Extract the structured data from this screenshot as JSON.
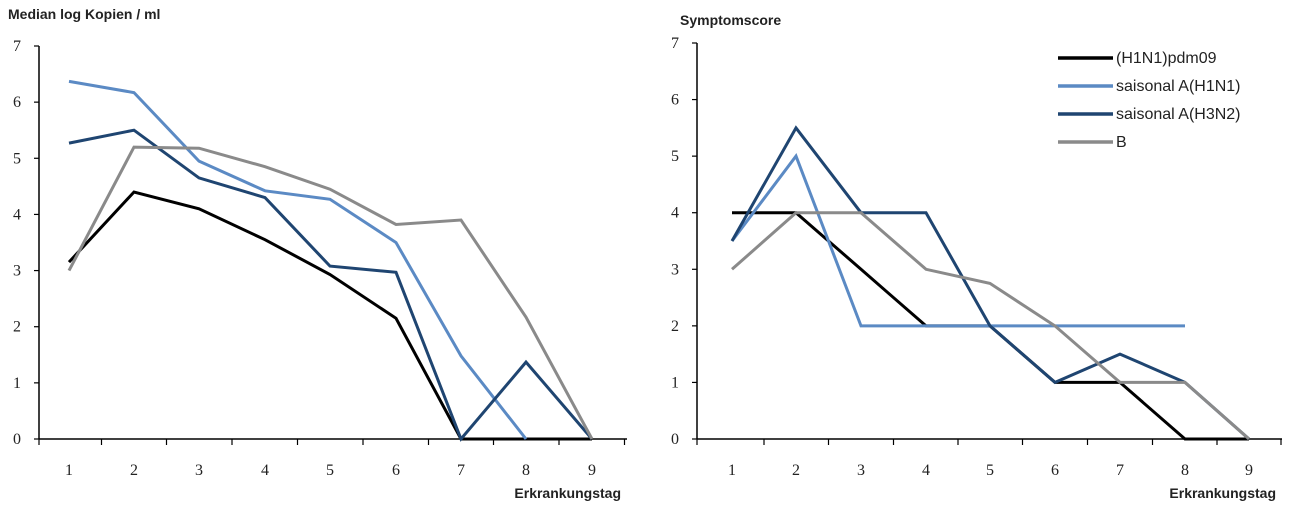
{
  "chart_data": [
    {
      "type": "line",
      "title": "Median log Kopien / ml",
      "xlabel": "Erkrankungstag",
      "ylabel": "",
      "ylim": [
        0,
        7
      ],
      "x": [
        1,
        2,
        3,
        4,
        5,
        6,
        7,
        8,
        9
      ],
      "x_tick_labels": [
        "1",
        "2",
        "3",
        "4",
        "5",
        "6",
        "7",
        "8",
        "9"
      ],
      "y_tick_labels": [
        "0",
        "1",
        "2",
        "3",
        "4",
        "5",
        "6",
        "7"
      ],
      "grid": false,
      "series": [
        {
          "name": "(H1N1)pdm09",
          "color": "#000000",
          "values": [
            3.15,
            4.4,
            4.1,
            3.55,
            2.93,
            2.15,
            0,
            0,
            0
          ]
        },
        {
          "name": "saisonal A(H1N1)",
          "color": "#5b8ac4",
          "values": [
            6.37,
            6.17,
            4.95,
            4.42,
            4.27,
            3.5,
            1.48,
            0,
            null
          ]
        },
        {
          "name": "saisonal A(H3N2)",
          "color": "#1f4571",
          "values": [
            5.27,
            5.5,
            4.65,
            4.3,
            3.08,
            2.97,
            0,
            1.37,
            0
          ]
        },
        {
          "name": "B",
          "color": "#8a8a8a",
          "values": [
            3.0,
            5.2,
            5.18,
            4.85,
            4.45,
            3.82,
            3.9,
            2.17,
            0
          ]
        }
      ]
    },
    {
      "type": "line",
      "title": "Symptomscore",
      "xlabel": "Erkrankungstag",
      "ylabel": "",
      "ylim": [
        0,
        7
      ],
      "x": [
        1,
        2,
        3,
        4,
        5,
        6,
        7,
        8,
        9
      ],
      "x_tick_labels": [
        "1",
        "2",
        "3",
        "4",
        "5",
        "6",
        "7",
        "8",
        "9"
      ],
      "y_tick_labels": [
        "0",
        "1",
        "2",
        "3",
        "4",
        "5",
        "6",
        "7"
      ],
      "grid": false,
      "legend": "top-right",
      "series": [
        {
          "name": "(H1N1)pdm09",
          "color": "#000000",
          "values": [
            4,
            4,
            3,
            2,
            2,
            1,
            1,
            0,
            0
          ]
        },
        {
          "name": "saisonal A(H1N1)",
          "color": "#5b8ac4",
          "values": [
            3.5,
            5,
            2,
            2,
            2,
            2,
            2,
            2,
            null
          ]
        },
        {
          "name": "saisonal A(H3N2)",
          "color": "#1f4571",
          "values": [
            3.5,
            5.5,
            4,
            4,
            2,
            1,
            1.5,
            1,
            0
          ]
        },
        {
          "name": "B",
          "color": "#8a8a8a",
          "values": [
            3,
            4,
            4,
            3,
            2.75,
            2,
            1,
            1,
            0
          ]
        }
      ]
    }
  ]
}
